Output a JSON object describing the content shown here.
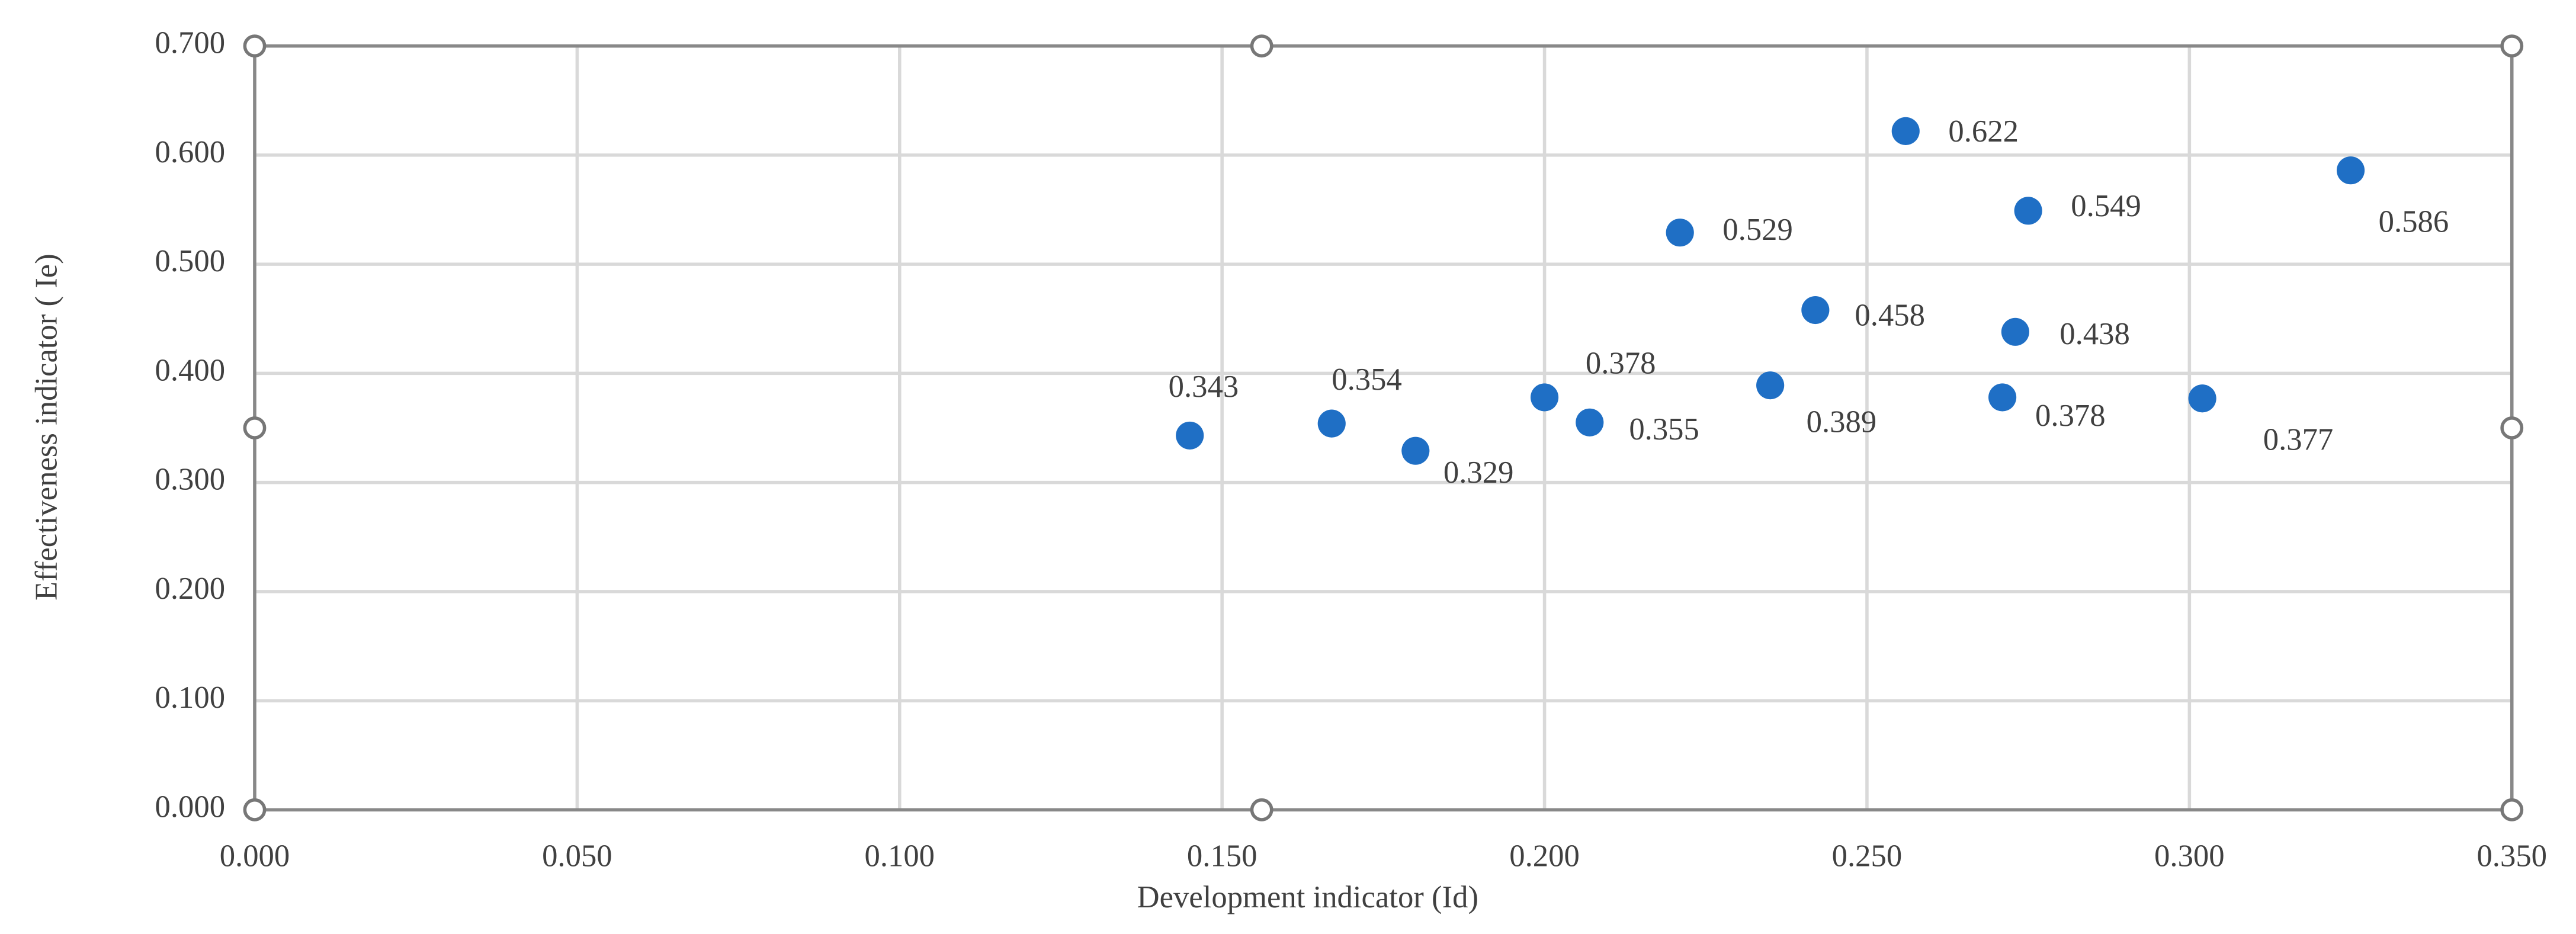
{
  "chart_data": {
    "type": "scatter",
    "x_label": "Development indicator (Id)",
    "y_label": "Effectiveness indicator ( Ie)",
    "x": [
      0.145,
      0.167,
      0.18,
      0.2,
      0.207,
      0.221,
      0.235,
      0.242,
      0.256,
      0.271,
      0.273,
      0.275,
      0.302,
      0.325
    ],
    "values": [
      0.343,
      0.354,
      0.329,
      0.378,
      0.355,
      0.529,
      0.389,
      0.458,
      0.622,
      0.378,
      0.438,
      0.549,
      0.377,
      0.586
    ],
    "color": "#1f6fc5",
    "xlim": [
      0,
      0.35
    ],
    "ylim": [
      0,
      0.7
    ],
    "xticks": [
      {
        "value": 0,
        "label": "0.000"
      },
      {
        "value": 0.05,
        "label": "0.050"
      },
      {
        "value": 0.1,
        "label": "0.100"
      },
      {
        "value": 0.15,
        "label": "0.150"
      },
      {
        "value": 0.2,
        "label": "0.200"
      },
      {
        "value": 0.25,
        "label": "0.250"
      },
      {
        "value": 0.3,
        "label": "0.300"
      },
      {
        "value": 0.35,
        "label": "0.350"
      }
    ],
    "yticks": [
      {
        "value": 0,
        "label": "0.000"
      },
      {
        "value": 0.1,
        "label": "0.100"
      },
      {
        "value": 0.2,
        "label": "0.200"
      },
      {
        "value": 0.3,
        "label": "0.300"
      },
      {
        "value": 0.4,
        "label": "0.400"
      },
      {
        "value": 0.5,
        "label": "0.500"
      },
      {
        "value": 0.6,
        "label": "0.600"
      },
      {
        "value": 0.7,
        "label": "0.700"
      }
    ],
    "grid": true
  }
}
